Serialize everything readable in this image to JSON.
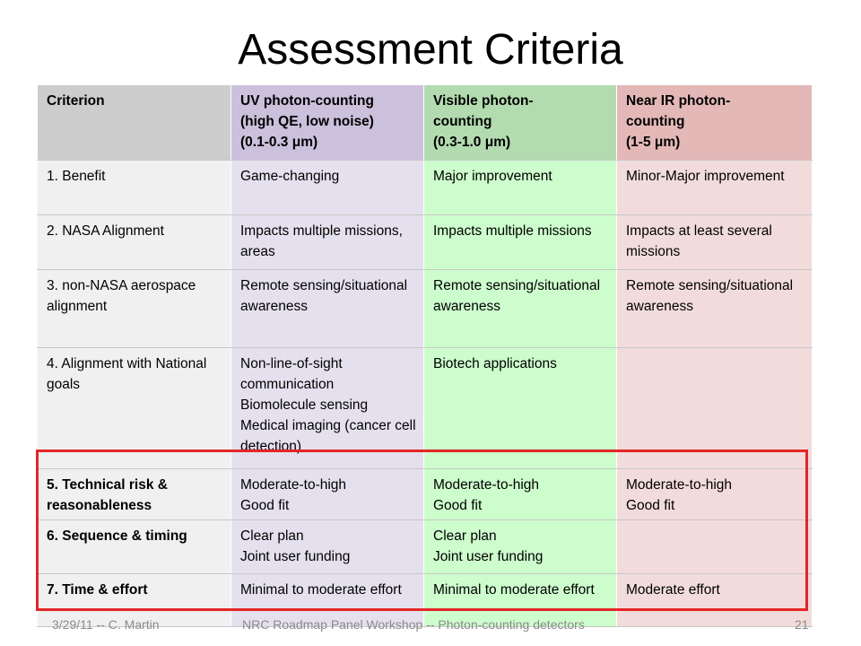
{
  "slide": {
    "title": "Assessment Criteria",
    "footer_date": "3/29/11 -- C. Martin",
    "footer_event": "NRC Roadmap Panel Workshop -- Photon-counting detectors",
    "page_number": "21"
  },
  "table": {
    "headers": [
      [
        "Criterion"
      ],
      [
        "UV photon-counting",
        "(high QE, low noise)",
        "(0.1-0.3 μm)"
      ],
      [
        "Visible photon-",
        "counting",
        "(0.3-1.0 μm)"
      ],
      [
        "Near IR photon-",
        "counting",
        "(1-5 μm)"
      ]
    ],
    "rows": [
      {
        "criterion": "1. Benefit",
        "uv": [
          "Game-changing"
        ],
        "visible": [
          "Major improvement"
        ],
        "nir": [
          "Minor-Major improvement"
        ]
      },
      {
        "criterion": "2. NASA Alignment",
        "uv": [
          "Impacts multiple missions, areas"
        ],
        "visible": [
          "Impacts multiple missions"
        ],
        "nir": [
          "Impacts at least several missions"
        ]
      },
      {
        "criterion": "3. non-NASA aerospace alignment",
        "uv": [
          "Remote sensing/situational awareness"
        ],
        "visible": [
          "Remote sensing/situational awareness"
        ],
        "nir": [
          "Remote sensing/situational awareness"
        ]
      },
      {
        "criterion": "4. Alignment with National goals",
        "uv": [
          "Non-line-of-sight communication",
          "Biomolecule sensing",
          "Medical imaging (cancer cell detection)"
        ],
        "visible": [
          "Biotech applications"
        ],
        "nir": []
      },
      {
        "criterion": "5. Technical risk & reasonableness",
        "uv": [
          "Moderate-to-high",
          "Good fit"
        ],
        "visible": [
          "Moderate-to-high",
          "Good fit"
        ],
        "nir": [
          "Moderate-to-high",
          "Good fit"
        ]
      },
      {
        "criterion": "6. Sequence & timing",
        "uv": [
          "Clear plan",
          "Joint user funding"
        ],
        "visible": [
          "Clear plan",
          "Joint user funding"
        ],
        "nir": []
      },
      {
        "criterion": "7. Time & effort",
        "uv": [
          "Minimal to moderate effort"
        ],
        "visible": [
          "Minimal to moderate effort"
        ],
        "nir": [
          "Moderate effort"
        ]
      }
    ]
  },
  "colors": {
    "header_criterion": "#cdcdcd",
    "header_uv": "#cbc1dc",
    "header_visible": "#b2dbb0",
    "header_nir": "#e4b8b7",
    "highlight": "#e32626"
  }
}
